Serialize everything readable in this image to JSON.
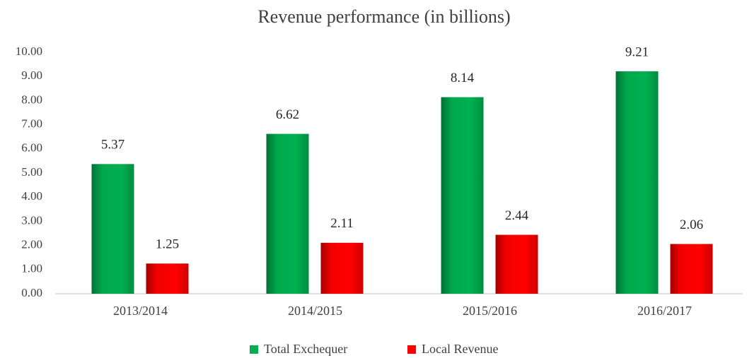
{
  "chart_data": {
    "type": "bar",
    "title": "Revenue performance (in billions)",
    "categories": [
      "2013/2014",
      "2014/2015",
      "2015/2016",
      "2016/2017"
    ],
    "series": [
      {
        "name": "Total Exchequer",
        "color": "#00b050",
        "values": [
          5.37,
          6.62,
          8.14,
          9.21
        ]
      },
      {
        "name": "Local Revenue",
        "color": "#ff0000",
        "values": [
          1.25,
          2.11,
          2.44,
          2.06
        ]
      }
    ],
    "ylim": [
      0,
      10
    ],
    "yticks": [
      {
        "value": 0,
        "label": "0.00"
      },
      {
        "value": 1,
        "label": "1.00"
      },
      {
        "value": 2,
        "label": "2.00"
      },
      {
        "value": 3,
        "label": "3.00"
      },
      {
        "value": 4,
        "label": "4.00"
      },
      {
        "value": 5,
        "label": "5.00"
      },
      {
        "value": 6,
        "label": "6.00"
      },
      {
        "value": 7,
        "label": "7.00"
      },
      {
        "value": 8,
        "label": "8.00"
      },
      {
        "value": 9,
        "label": "9.00"
      },
      {
        "value": 10,
        "label": "10.00"
      }
    ],
    "grid": false,
    "legend": "bottom"
  }
}
